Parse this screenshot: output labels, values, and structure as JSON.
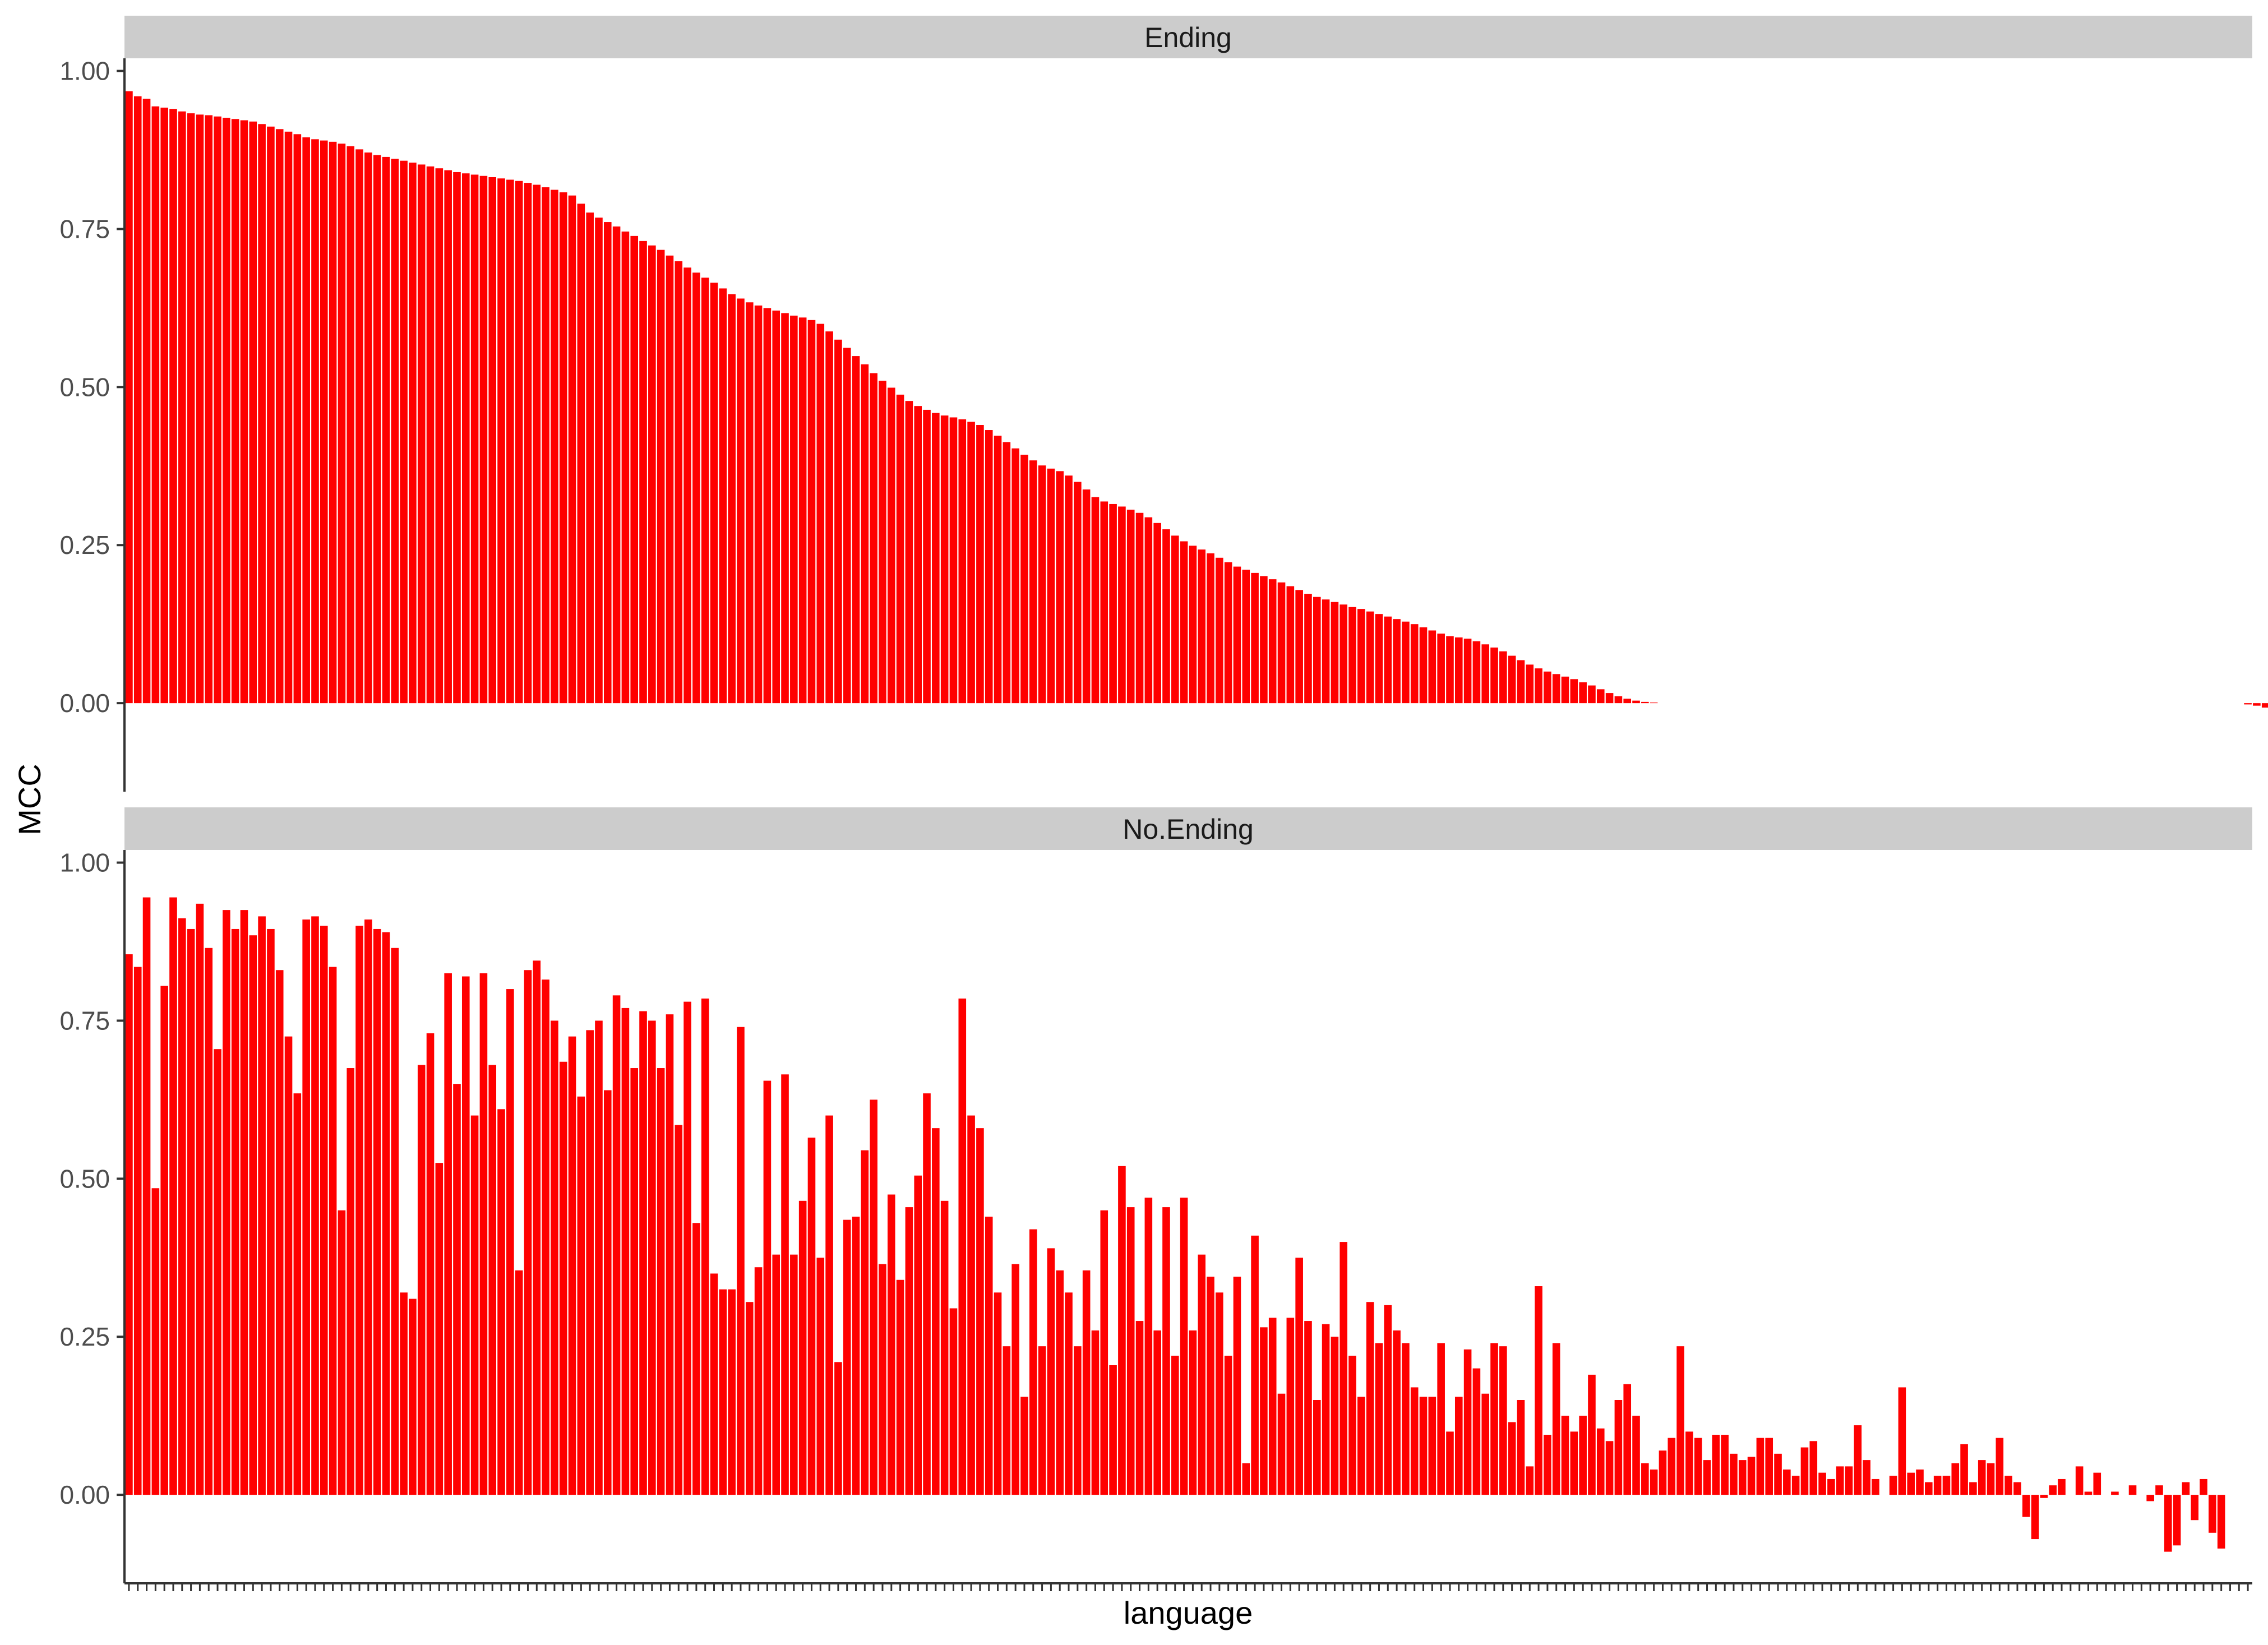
{
  "chart_data": {
    "type": "bar",
    "layout": "facet-vertical",
    "xlabel": "language",
    "ylabel": "MCC",
    "bar_color": "#FF0000",
    "strip_color": "#CCCCCC",
    "ylim": [
      -0.14,
      1.02
    ],
    "yticks": [
      0.0,
      0.25,
      0.5,
      0.75,
      1.0
    ],
    "ytick_labels": [
      "0.00",
      "0.25",
      "0.50",
      "0.75",
      "1.00"
    ],
    "n_categories": 240,
    "grid": false,
    "facets": [
      {
        "label": "Ending",
        "values": [
          0.968,
          0.96,
          0.956,
          0.944,
          0.942,
          0.94,
          0.936,
          0.933,
          0.931,
          0.93,
          0.928,
          0.926,
          0.924,
          0.922,
          0.92,
          0.916,
          0.912,
          0.908,
          0.904,
          0.9,
          0.895,
          0.892,
          0.89,
          0.888,
          0.885,
          0.881,
          0.876,
          0.871,
          0.867,
          0.864,
          0.861,
          0.858,
          0.855,
          0.852,
          0.849,
          0.846,
          0.843,
          0.84,
          0.838,
          0.836,
          0.834,
          0.832,
          0.83,
          0.828,
          0.826,
          0.823,
          0.82,
          0.816,
          0.812,
          0.808,
          0.803,
          0.79,
          0.776,
          0.768,
          0.761,
          0.754,
          0.746,
          0.739,
          0.731,
          0.724,
          0.717,
          0.708,
          0.699,
          0.689,
          0.681,
          0.673,
          0.665,
          0.656,
          0.647,
          0.64,
          0.634,
          0.629,
          0.625,
          0.621,
          0.617,
          0.613,
          0.61,
          0.606,
          0.6,
          0.588,
          0.575,
          0.562,
          0.549,
          0.536,
          0.522,
          0.51,
          0.499,
          0.488,
          0.478,
          0.47,
          0.464,
          0.459,
          0.455,
          0.452,
          0.449,
          0.445,
          0.44,
          0.432,
          0.423,
          0.413,
          0.403,
          0.393,
          0.384,
          0.376,
          0.371,
          0.367,
          0.36,
          0.35,
          0.338,
          0.326,
          0.319,
          0.315,
          0.311,
          0.306,
          0.301,
          0.294,
          0.285,
          0.275,
          0.265,
          0.256,
          0.249,
          0.243,
          0.237,
          0.23,
          0.223,
          0.216,
          0.211,
          0.206,
          0.201,
          0.196,
          0.191,
          0.185,
          0.179,
          0.173,
          0.168,
          0.164,
          0.16,
          0.156,
          0.152,
          0.149,
          0.145,
          0.141,
          0.137,
          0.133,
          0.129,
          0.125,
          0.12,
          0.115,
          0.11,
          0.106,
          0.104,
          0.102,
          0.098,
          0.093,
          0.088,
          0.082,
          0.075,
          0.068,
          0.061,
          0.055,
          0.05,
          0.046,
          0.042,
          0.038,
          0.033,
          0.028,
          0.022,
          0.016,
          0.011,
          0.007,
          0.004,
          0.002,
          0.001,
          0.0,
          0.0,
          0.0,
          0.0,
          0.0,
          0.0,
          0.0,
          0.0,
          0.0,
          0.0,
          0.0,
          0.0,
          0.0,
          0.0,
          0.0,
          0.0,
          0.0,
          0.0,
          0.0,
          0.0,
          0.0,
          0.0,
          0.0,
          0.0,
          0.0,
          0.0,
          0.0,
          0.0,
          0.0,
          0.0,
          0.0,
          0.0,
          0.0,
          0.0,
          0.0,
          0.0,
          0.0,
          0.0,
          0.0,
          0.0,
          0.0,
          0.0,
          0.0,
          0.0,
          0.0,
          0.0,
          0.0,
          0.0,
          0.0,
          0.0,
          0.0,
          0.0,
          0.0,
          0.0,
          0.0,
          0.0,
          0.0,
          0.0,
          0.0,
          0.0,
          0.0,
          0.0,
          0.0,
          0.0,
          0.0,
          0.0,
          -0.002,
          -0.004,
          -0.007,
          -0.012,
          -0.018,
          -0.025,
          -0.033,
          -0.045,
          -0.06,
          -0.085
        ]
      },
      {
        "label": "No.Ending",
        "values": [
          0.855,
          0.835,
          0.945,
          0.485,
          0.805,
          0.945,
          0.912,
          0.895,
          0.935,
          0.865,
          0.705,
          0.925,
          0.895,
          0.925,
          0.885,
          0.915,
          0.895,
          0.83,
          0.725,
          0.635,
          0.91,
          0.915,
          0.9,
          0.835,
          0.45,
          0.675,
          0.9,
          0.91,
          0.895,
          0.89,
          0.865,
          0.32,
          0.31,
          0.68,
          0.73,
          0.525,
          0.825,
          0.65,
          0.82,
          0.6,
          0.825,
          0.68,
          0.61,
          0.8,
          0.355,
          0.83,
          0.845,
          0.815,
          0.75,
          0.685,
          0.725,
          0.63,
          0.735,
          0.75,
          0.64,
          0.79,
          0.77,
          0.675,
          0.765,
          0.75,
          0.675,
          0.76,
          0.585,
          0.78,
          0.43,
          0.785,
          0.35,
          0.325,
          0.325,
          0.74,
          0.305,
          0.36,
          0.655,
          0.38,
          0.665,
          0.38,
          0.465,
          0.565,
          0.375,
          0.6,
          0.21,
          0.435,
          0.44,
          0.545,
          0.625,
          0.365,
          0.475,
          0.34,
          0.455,
          0.505,
          0.635,
          0.58,
          0.465,
          0.295,
          0.785,
          0.6,
          0.58,
          0.44,
          0.32,
          0.235,
          0.365,
          0.155,
          0.42,
          0.235,
          0.39,
          0.355,
          0.32,
          0.235,
          0.355,
          0.26,
          0.45,
          0.205,
          0.52,
          0.455,
          0.275,
          0.47,
          0.26,
          0.455,
          0.22,
          0.47,
          0.26,
          0.38,
          0.345,
          0.32,
          0.22,
          0.345,
          0.05,
          0.41,
          0.265,
          0.28,
          0.16,
          0.28,
          0.375,
          0.275,
          0.15,
          0.27,
          0.25,
          0.4,
          0.22,
          0.155,
          0.305,
          0.24,
          0.3,
          0.26,
          0.24,
          0.17,
          0.155,
          0.155,
          0.24,
          0.1,
          0.155,
          0.23,
          0.2,
          0.16,
          0.24,
          0.235,
          0.115,
          0.15,
          0.045,
          0.33,
          0.095,
          0.24,
          0.125,
          0.1,
          0.125,
          0.19,
          0.105,
          0.085,
          0.15,
          0.175,
          0.125,
          0.05,
          0.04,
          0.07,
          0.09,
          0.235,
          0.1,
          0.09,
          0.055,
          0.095,
          0.095,
          0.065,
          0.055,
          0.06,
          0.09,
          0.09,
          0.065,
          0.04,
          0.03,
          0.075,
          0.085,
          0.035,
          0.025,
          0.045,
          0.045,
          0.11,
          0.055,
          0.025,
          0.0,
          0.03,
          0.17,
          0.035,
          0.04,
          0.02,
          0.03,
          0.03,
          0.05,
          0.08,
          0.02,
          0.055,
          0.05,
          0.09,
          0.03,
          0.02,
          -0.035,
          -0.07,
          -0.005,
          0.015,
          0.025,
          0.0,
          0.045,
          0.005,
          0.035,
          0.0,
          0.005,
          0.0,
          0.015,
          0.0,
          -0.01,
          0.015,
          -0.09,
          -0.08,
          0.02,
          -0.04,
          0.025,
          -0.06,
          -0.085
        ]
      }
    ]
  }
}
